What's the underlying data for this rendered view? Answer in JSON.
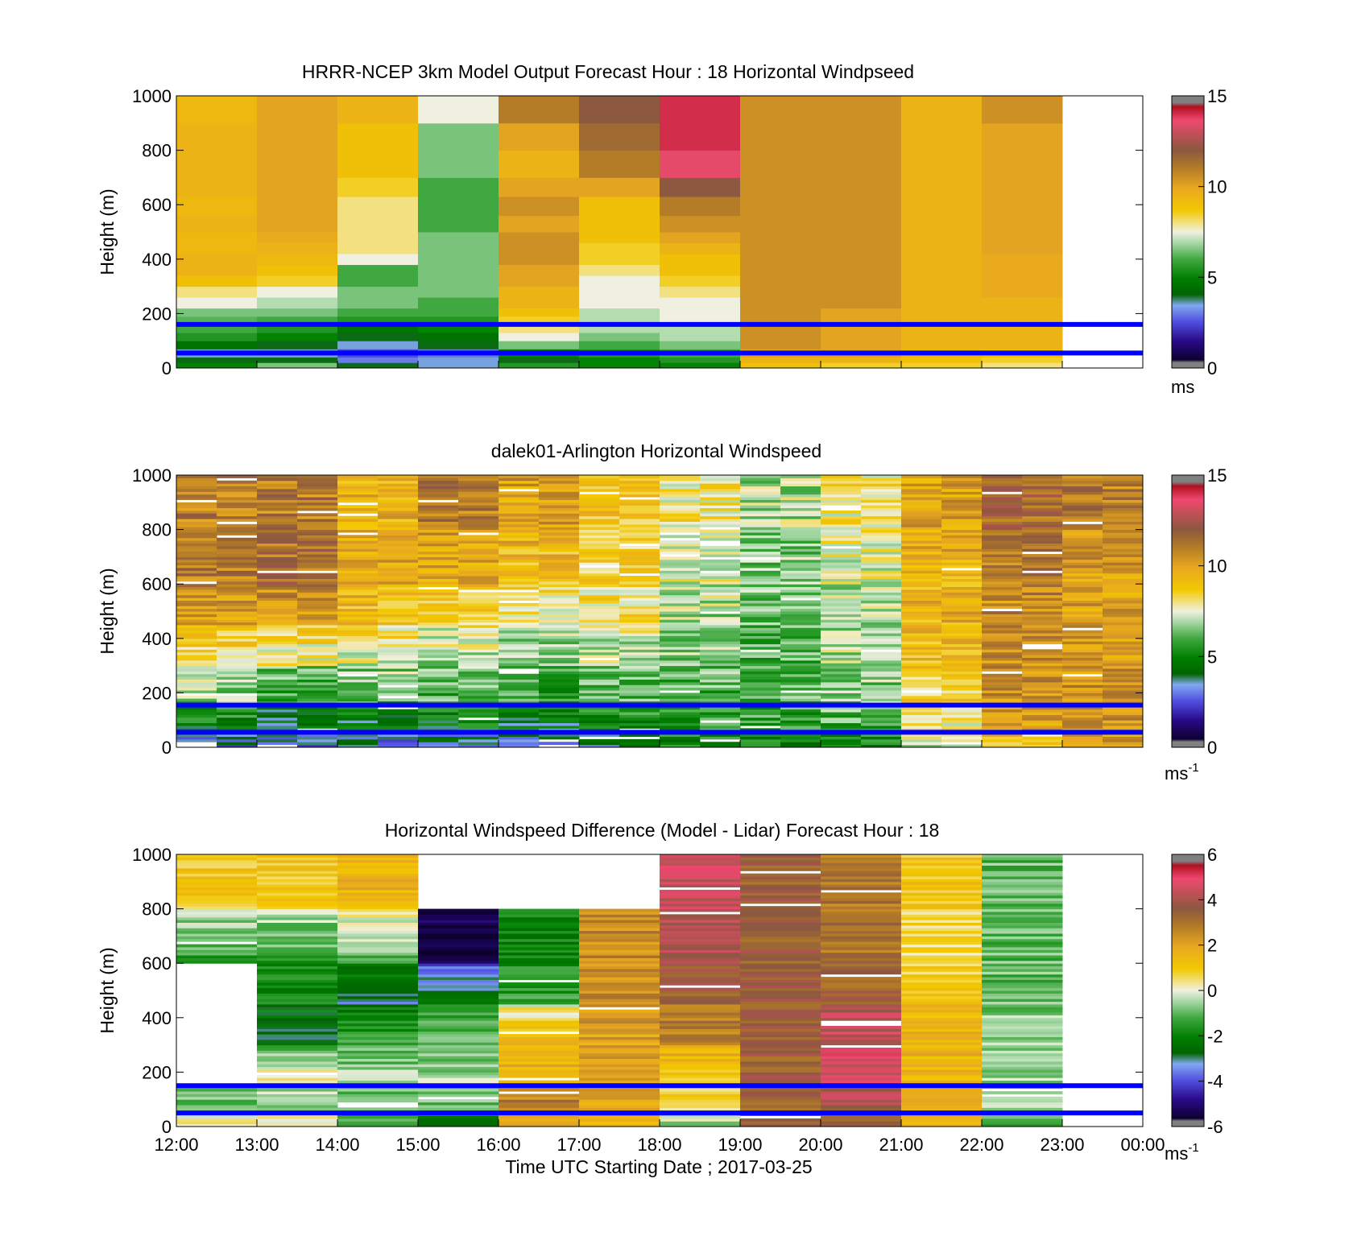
{
  "chart_data": [
    {
      "type": "heatmap",
      "title": "HRRR-NCEP 3km Model Output   Forecast Hour : 18 Horizontal Windpseed",
      "ylabel": "Height (m)",
      "xlabel": "",
      "ylim": [
        0,
        1000
      ],
      "yticks": [
        "0",
        "200",
        "400",
        "600",
        "800",
        "1000"
      ],
      "xticks": [],
      "colorbar": {
        "ticks": [
          "0",
          "5",
          "10",
          "15"
        ],
        "range": [
          0,
          15
        ],
        "unit": "ms",
        "unit_sup": ""
      },
      "x_hours": [
        12,
        13,
        14,
        15,
        16,
        17,
        18,
        19,
        20,
        21,
        22,
        23
      ],
      "height_edges": [
        0,
        20,
        40,
        70,
        100,
        130,
        160,
        190,
        220,
        260,
        300,
        340,
        380,
        420,
        460,
        500,
        560,
        630,
        700,
        800,
        900,
        1000
      ],
      "values": [
        [
          5.0,
          4.0,
          3.5,
          4.5,
          5.5,
          6.0,
          6.2,
          6.5,
          7.5,
          8.0,
          9.0,
          9.5,
          9.5,
          9.3,
          9.3,
          9.5,
          9.3,
          9.5,
          9.5,
          9.5,
          9.3
        ],
        [
          6.5,
          4.0,
          3.5,
          4.0,
          5.0,
          5.5,
          6.0,
          6.5,
          7.0,
          7.5,
          8.5,
          9.0,
          9.3,
          9.5,
          9.8,
          10.0,
          10.0,
          10.0,
          10.0,
          10.0,
          10.0
        ],
        [
          4.0,
          3.0,
          2.5,
          3.5,
          4.0,
          4.5,
          5.5,
          6.0,
          6.5,
          6.5,
          6.0,
          6.0,
          7.5,
          8.0,
          8.0,
          8.0,
          8.0,
          8.5,
          9.0,
          9.0,
          9.5
        ],
        [
          3.5,
          3.5,
          3.0,
          4.0,
          4.5,
          5.0,
          5.5,
          6.0,
          6.0,
          6.5,
          6.5,
          6.5,
          6.5,
          6.5,
          6.5,
          6.0,
          6.0,
          6.0,
          6.5,
          6.5,
          7.5
        ],
        [
          5.5,
          4.0,
          5.0,
          6.5,
          7.5,
          8.0,
          8.5,
          9.0,
          9.5,
          9.5,
          10.0,
          10.0,
          10.5,
          10.5,
          10.5,
          10.0,
          10.5,
          10.0,
          9.5,
          10.0,
          11.0
        ],
        [
          5.0,
          5.0,
          5.5,
          6.0,
          6.5,
          7.0,
          7.0,
          7.0,
          7.5,
          7.5,
          7.5,
          8.0,
          8.5,
          8.5,
          9.0,
          9.0,
          9.0,
          10.0,
          11.0,
          11.5,
          12.0
        ],
        [
          5.0,
          5.5,
          6.0,
          6.5,
          7.0,
          7.0,
          7.5,
          7.5,
          7.5,
          8.0,
          8.5,
          9.0,
          9.0,
          9.5,
          10.0,
          10.5,
          11.0,
          12.0,
          13.5,
          14.0,
          14.0
        ],
        [
          9.0,
          9.5,
          10.0,
          10.5,
          10.5,
          10.5,
          10.5,
          10.5,
          10.5,
          10.5,
          10.5,
          10.5,
          10.5,
          10.5,
          10.5,
          10.5,
          10.5,
          10.5,
          10.5,
          10.5,
          10.5
        ],
        [
          8.5,
          9.5,
          10.0,
          10.0,
          10.0,
          10.0,
          10.0,
          10.0,
          10.5,
          10.5,
          10.5,
          10.5,
          10.5,
          10.5,
          10.5,
          10.5,
          10.5,
          10.5,
          10.5,
          10.5,
          10.5
        ],
        [
          8.5,
          9.0,
          9.3,
          9.5,
          9.5,
          9.5,
          9.5,
          9.5,
          9.5,
          9.5,
          9.5,
          9.5,
          9.5,
          9.5,
          9.5,
          9.5,
          9.5,
          9.5,
          9.5,
          9.5,
          9.5
        ],
        [
          8.0,
          8.5,
          9.0,
          9.5,
          9.5,
          9.5,
          9.5,
          9.5,
          9.5,
          9.8,
          9.8,
          9.8,
          9.8,
          10.0,
          10.0,
          10.0,
          10.0,
          10.0,
          10.0,
          10.0,
          10.5
        ]
      ],
      "reference_lines_m": [
        160,
        55
      ]
    },
    {
      "type": "heatmap",
      "title": "dalek01-Arlington  Horizontal Windspeed",
      "ylabel": "Height (m)",
      "xlabel": "",
      "ylim": [
        0,
        1000
      ],
      "yticks": [
        "0",
        "200",
        "400",
        "600",
        "800",
        "1000"
      ],
      "xticks": [],
      "colorbar": {
        "ticks": [
          "0",
          "5",
          "10",
          "15"
        ],
        "range": [
          0,
          15
        ],
        "unit": "ms",
        "unit_sup": "-1"
      },
      "time_bin_hours": 0.5,
      "values_by_hour_and_band": [
        {
          "hour": 12,
          "bands": [
            3.0,
            4.5,
            6.5,
            8.0,
            10.0,
            11.0,
            11.0
          ]
        },
        {
          "hour": 13,
          "bands": [
            3.0,
            4.0,
            5.5,
            7.5,
            10.0,
            11.5,
            11.0
          ]
        },
        {
          "hour": 14,
          "bands": [
            3.0,
            4.0,
            6.0,
            7.5,
            9.0,
            10.0,
            9.5
          ]
        },
        {
          "hour": 15,
          "bands": [
            3.5,
            4.5,
            6.0,
            7.0,
            8.5,
            9.5,
            11.0
          ]
        },
        {
          "hour": 16,
          "bands": [
            3.5,
            4.0,
            5.5,
            6.5,
            7.5,
            9.0,
            10.0
          ]
        },
        {
          "hour": 17,
          "bands": [
            4.0,
            5.0,
            6.0,
            7.0,
            8.0,
            8.5,
            9.0
          ]
        },
        {
          "hour": 18,
          "bands": [
            5.0,
            5.5,
            6.0,
            6.5,
            7.0,
            7.5,
            8.0
          ]
        },
        {
          "hour": 19,
          "bands": [
            5.0,
            5.5,
            6.0,
            6.0,
            6.5,
            6.5,
            7.0
          ]
        },
        {
          "hour": 20,
          "bands": [
            5.0,
            6.0,
            6.5,
            7.0,
            7.0,
            7.5,
            8.0
          ]
        },
        {
          "hour": 21,
          "bands": [
            7.0,
            8.0,
            8.5,
            9.0,
            9.5,
            9.5,
            10.0
          ]
        },
        {
          "hour": 22,
          "bands": [
            9.0,
            10.0,
            10.5,
            10.5,
            10.5,
            11.0,
            11.5
          ]
        },
        {
          "hour": 23,
          "bands": [
            10.0,
            10.5,
            10.5,
            10.0,
            10.0,
            10.0,
            11.0
          ]
        }
      ],
      "band_edges_m": [
        0,
        50,
        150,
        300,
        450,
        600,
        800,
        1000
      ],
      "reference_lines_m": [
        155,
        55
      ]
    },
    {
      "type": "heatmap",
      "title": "Horizontal Windspeed Difference (Model - Lidar) Forecast Hour : 18",
      "ylabel": "Height (m)",
      "xlabel": "Time UTC  Starting Date ; 2017-03-25",
      "ylim": [
        0,
        1000
      ],
      "yticks": [
        "0",
        "200",
        "400",
        "600",
        "800",
        "1000"
      ],
      "xticks": [
        "12:00",
        "13:00",
        "14:00",
        "15:00",
        "16:00",
        "17:00",
        "18:00",
        "19:00",
        "20:00",
        "21:00",
        "22:00",
        "23:00",
        "00:00"
      ],
      "colorbar": {
        "ticks": [
          "-6",
          "-4",
          "-2",
          "0",
          "2",
          "4",
          "6"
        ],
        "range": [
          -6,
          6
        ],
        "unit": "ms",
        "unit_sup": "-1"
      },
      "values_by_hour_and_band": [
        {
          "hour": 12,
          "bands": [
            0.5,
            -1.0,
            null,
            null,
            null,
            -1.5,
            1.0
          ]
        },
        {
          "hour": 13,
          "bands": [
            0.5,
            -1.0,
            0.5,
            -2.5,
            -2.0,
            -1.5,
            1.0
          ]
        },
        {
          "hour": 14,
          "bands": [
            -1.0,
            -1.0,
            -0.5,
            -1.5,
            -3.0,
            -1.0,
            1.5
          ]
        },
        {
          "hour": 15,
          "bands": [
            -2.5,
            -1.0,
            -0.5,
            -1.0,
            -2.5,
            -5.5,
            null
          ]
        },
        {
          "hour": 16,
          "bands": [
            1.5,
            3.0,
            1.5,
            1.5,
            -1.5,
            -2.0,
            null
          ]
        },
        {
          "hour": 17,
          "bands": [
            1.5,
            2.0,
            2.0,
            2.0,
            2.5,
            2.5,
            null
          ]
        },
        {
          "hour": 18,
          "bands": [
            -0.5,
            0.5,
            1.0,
            2.5,
            3.5,
            4.0,
            4.5
          ]
        },
        {
          "hour": 19,
          "bands": [
            3.5,
            3.5,
            3.5,
            3.5,
            3.5,
            3.5,
            3.5
          ]
        },
        {
          "hour": 20,
          "bands": [
            3.5,
            4.0,
            4.5,
            4.5,
            3.5,
            3.0,
            3.0
          ]
        },
        {
          "hour": 21,
          "bands": [
            1.5,
            1.5,
            1.5,
            1.5,
            1.0,
            0.5,
            1.0
          ]
        },
        {
          "hour": 22,
          "bands": [
            -1.0,
            -0.5,
            -0.5,
            -0.5,
            -1.0,
            -1.0,
            -1.0
          ]
        },
        {
          "hour": 23,
          "bands": [
            null,
            null,
            null,
            null,
            null,
            null,
            null
          ]
        }
      ],
      "band_edges_m": [
        0,
        50,
        150,
        300,
        450,
        600,
        800,
        1000
      ],
      "reference_lines_m": [
        150,
        50
      ]
    }
  ],
  "colors": {
    "reference_line": "#0000ff",
    "background": "#ffffff"
  }
}
